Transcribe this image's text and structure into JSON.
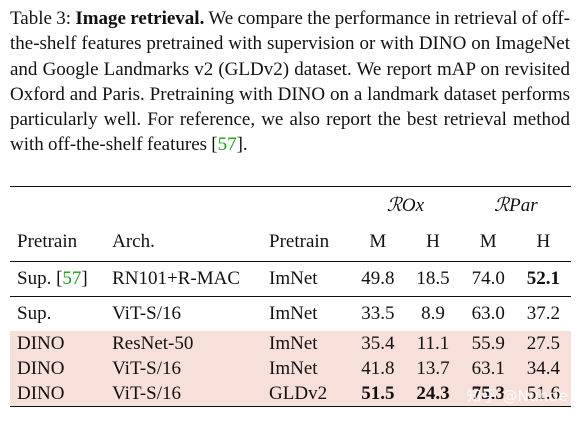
{
  "caption": {
    "label": "Table 3:",
    "title": "Image retrieval.",
    "text": "We compare the performance in retrieval of off-the-shelf features pretrained with supervision or with DINO on ImageNet and Google Landmarks v2 (GLDv2) dataset.  We report mAP on revisited Oxford and Paris. Pretraining with DINO on a landmark dataset performs particularly well. For reference, we also report the best retrieval method with off-the-shelf features",
    "cite_open": "[",
    "cite": "57",
    "cite_close": "]."
  },
  "table": {
    "group_headers": [
      "ℛOx",
      "ℛPar"
    ],
    "columns": {
      "pretrain": "Pretrain",
      "arch": "Arch.",
      "dataset": "Pretrain",
      "ox_m": "M",
      "ox_h": "H",
      "par_m": "M",
      "par_h": "H"
    },
    "rows": [
      {
        "pretrain": "Sup.",
        "cite": "57",
        "arch": "RN101+R-MAC",
        "dataset": "ImNet",
        "ox_m": "49.8",
        "ox_h": "18.5",
        "par_m": "74.0",
        "par_h": "52.1"
      },
      {
        "pretrain": "Sup.",
        "arch": "ViT-S/16",
        "dataset": "ImNet",
        "ox_m": "33.5",
        "ox_h": "8.9",
        "par_m": "63.0",
        "par_h": "37.2"
      },
      {
        "pretrain": "DINO",
        "arch": "ResNet-50",
        "dataset": "ImNet",
        "ox_m": "35.4",
        "ox_h": "11.1",
        "par_m": "55.9",
        "par_h": "27.5"
      },
      {
        "pretrain": "DINO",
        "arch": "ViT-S/16",
        "dataset": "ImNet",
        "ox_m": "41.8",
        "ox_h": "13.7",
        "par_m": "63.1",
        "par_h": "34.4"
      },
      {
        "pretrain": "DINO",
        "arch": "ViT-S/16",
        "dataset": "GLDv2",
        "ox_m": "51.5",
        "ox_h": "24.3",
        "par_m": "75.3",
        "par_h": "51.6"
      }
    ],
    "highlight_color": "#f7e0d9",
    "cite_color": "#1a9e1a"
  },
  "watermark": "知乎 @Nuhde"
}
